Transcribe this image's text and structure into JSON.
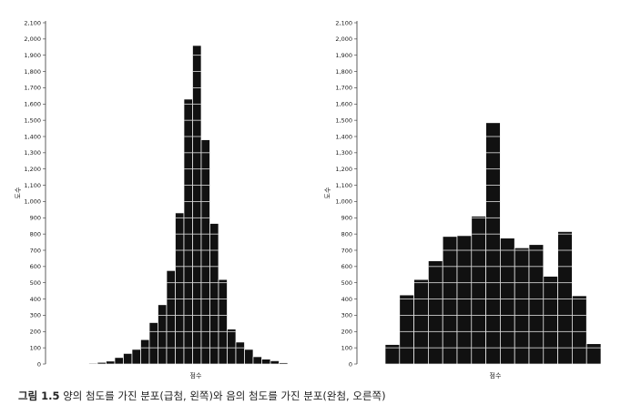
{
  "chart_data": [
    {
      "type": "bar",
      "xlabel": "점수",
      "ylabel": "도수",
      "ylim": [
        0,
        2100
      ],
      "yticks": [
        0,
        100,
        200,
        300,
        400,
        500,
        600,
        700,
        800,
        900,
        1000,
        1100,
        1200,
        1300,
        1400,
        1500,
        1600,
        1700,
        1800,
        1900,
        2000,
        2100
      ],
      "ytick_labels": [
        "0",
        "100",
        "200",
        "300",
        "400",
        "500",
        "600",
        "700",
        "800",
        "900",
        "1,000",
        "1,100",
        "1,200",
        "1,300",
        "1,400",
        "1,500",
        "1,600",
        "1,700",
        "1,800",
        "1,900",
        "2,000",
        "2,100"
      ],
      "values": [
        2,
        5,
        10,
        18,
        40,
        65,
        90,
        150,
        255,
        365,
        575,
        930,
        1630,
        1960,
        1380,
        865,
        520,
        215,
        135,
        90,
        45,
        30,
        20,
        8
      ],
      "grid": false
    },
    {
      "type": "bar",
      "xlabel": "점수",
      "ylabel": "도수",
      "ylim": [
        0,
        2100
      ],
      "yticks": [
        0,
        100,
        200,
        300,
        400,
        500,
        600,
        700,
        800,
        900,
        1000,
        1100,
        1200,
        1300,
        1400,
        1500,
        1600,
        1700,
        1800,
        1900,
        2000,
        2100
      ],
      "ytick_labels": [
        "0",
        "100",
        "200",
        "300",
        "400",
        "500",
        "600",
        "700",
        "800",
        "900",
        "1,000",
        "1,100",
        "1,200",
        "1,300",
        "1,400",
        "1,500",
        "1,600",
        "1,700",
        "1,800",
        "1,900",
        "2,000",
        "2,100"
      ],
      "values": [
        120,
        425,
        520,
        635,
        785,
        790,
        910,
        1485,
        775,
        715,
        735,
        540,
        815,
        420,
        125
      ],
      "grid": false
    }
  ],
  "caption": {
    "number": "그림 1.5",
    "text": "양의 첨도를 가진 분포(급첨, 왼쪽)와 음의 첨도를 가진 분포(완첨, 오른쪽)"
  },
  "colors": {
    "bar": "#111111",
    "bar_line": "#ffffff",
    "axis": "#333333"
  }
}
